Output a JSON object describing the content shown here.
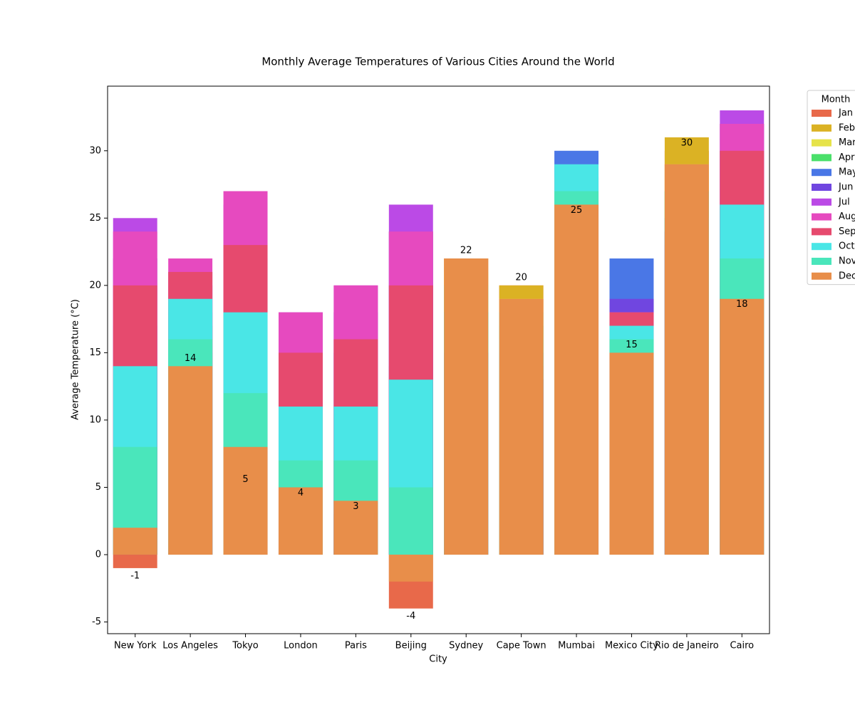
{
  "chart_data": {
    "type": "bar",
    "mode": "overlap",
    "title": "Monthly Average Temperatures of Various Cities Around the World",
    "x_label": "City",
    "y_label": "Average Temperature (°C)",
    "legend_title": "Month",
    "legend_position": "outside-upper-right",
    "categories": [
      "New York",
      "Los Angeles",
      "Tokyo",
      "London",
      "Paris",
      "Beijing",
      "Sydney",
      "Cape Town",
      "Mumbai",
      "Mexico City",
      "Rio de Janeiro",
      "Cairo"
    ],
    "ylim": [
      -5.87,
      34.8
    ],
    "yticks": [
      -5,
      0,
      5,
      10,
      15,
      20,
      25,
      30
    ],
    "value_label_series": 0,
    "series": [
      {
        "name": "Jan",
        "color": "#e8694a",
        "values": [
          -1,
          14,
          5,
          4,
          3,
          -4,
          22,
          20,
          25,
          15,
          30,
          18
        ]
      },
      {
        "name": "Feb",
        "color": "#dbb224",
        "values": [
          1,
          15,
          6,
          5,
          4,
          0,
          22,
          20,
          25,
          16,
          31,
          20
        ]
      },
      {
        "name": "Mar",
        "color": "#e6e34a",
        "values": [
          5,
          16,
          9,
          7,
          8,
          6,
          21,
          19,
          27,
          18,
          29,
          22
        ]
      },
      {
        "name": "Apr",
        "color": "#4ae06a",
        "values": [
          11,
          17,
          14,
          9,
          11,
          14,
          18,
          17,
          29,
          19,
          27,
          26
        ]
      },
      {
        "name": "May",
        "color": "#4a77e6",
        "values": [
          17,
          18,
          19,
          13,
          15,
          20,
          15,
          15,
          30,
          22,
          25,
          30
        ]
      },
      {
        "name": "Jun",
        "color": "#7046e0",
        "values": [
          22,
          20,
          22,
          16,
          18,
          24,
          13,
          13,
          29,
          19,
          24,
          32
        ]
      },
      {
        "name": "Jul",
        "color": "#bb4ae6",
        "values": [
          25,
          21,
          26,
          18,
          20,
          26,
          12,
          12,
          28,
          18,
          23,
          33
        ]
      },
      {
        "name": "Aug",
        "color": "#e64abf",
        "values": [
          24,
          22,
          27,
          18,
          20,
          24,
          13,
          13,
          28,
          18,
          24,
          32
        ]
      },
      {
        "name": "Sep",
        "color": "#e64a6e",
        "values": [
          20,
          21,
          23,
          15,
          16,
          20,
          15,
          14,
          28,
          18,
          24,
          30
        ]
      },
      {
        "name": "Oct",
        "color": "#4ae6e6",
        "values": [
          14,
          19,
          18,
          11,
          11,
          13,
          18,
          16,
          29,
          17,
          25,
          26
        ]
      },
      {
        "name": "Nov",
        "color": "#4ae6bb",
        "values": [
          8,
          16,
          12,
          7,
          7,
          5,
          20,
          18,
          27,
          16,
          27,
          22
        ]
      },
      {
        "name": "Dec",
        "color": "#e88e4a",
        "values": [
          2,
          14,
          8,
          5,
          4,
          -2,
          22,
          19,
          26,
          15,
          29,
          19
        ]
      }
    ]
  }
}
